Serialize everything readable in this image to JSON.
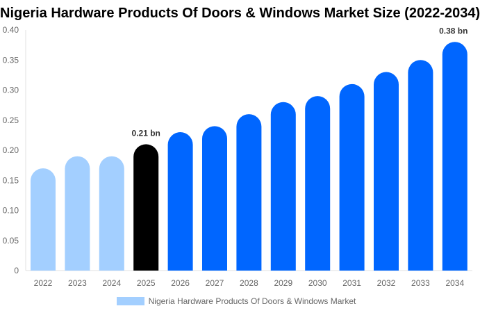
{
  "chart_data": {
    "type": "bar",
    "title": "Nigeria Hardware Products Of Doors & Windows Market Size (2022-2034)",
    "categories": [
      "2022",
      "2023",
      "2024",
      "2025",
      "2026",
      "2027",
      "2028",
      "2029",
      "2030",
      "2031",
      "2032",
      "2033",
      "2034"
    ],
    "series": [
      {
        "name": "Nigeria Hardware Products Of Doors & Windows Market",
        "values": [
          0.17,
          0.19,
          0.19,
          0.21,
          0.23,
          0.24,
          0.26,
          0.28,
          0.29,
          0.31,
          0.33,
          0.35,
          0.38
        ]
      }
    ],
    "ylim": [
      0,
      0.4
    ],
    "yticks": [
      "0",
      "0.05",
      "0.10",
      "0.15",
      "0.20",
      "0.25",
      "0.30",
      "0.35",
      "0.40"
    ],
    "data_labels": {
      "2025": "0.21 bn",
      "2034": "0.38 bn"
    },
    "colors": {
      "historical": "#a3cfff",
      "current": "#000000",
      "forecast": "#0066ff"
    },
    "grid": false,
    "legend_position": "bottom"
  }
}
